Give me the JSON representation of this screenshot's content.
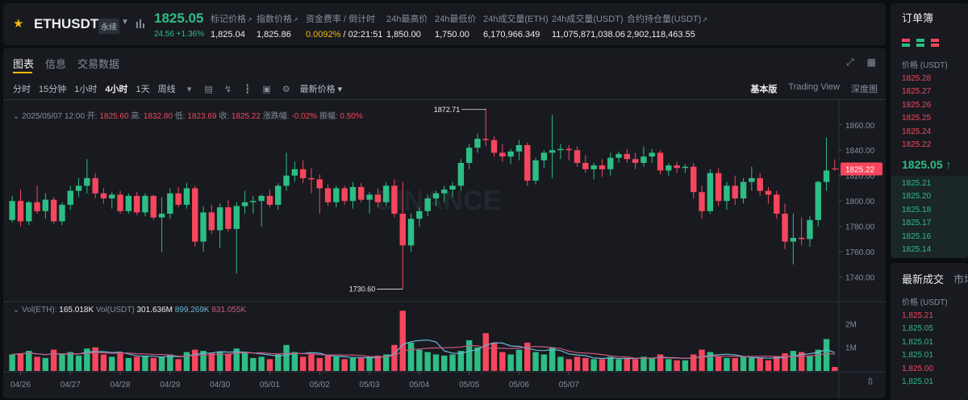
{
  "ticker": {
    "symbol": "ETHUSDT",
    "contract_tag": "永续",
    "last_price": "1825.05",
    "change": "24.56 +1.36%",
    "stats": [
      {
        "label": "标记价格",
        "value": "1,825.04",
        "ext": true
      },
      {
        "label": "指数价格",
        "value": "1,825.86",
        "ext": true
      },
      {
        "label": "资金费率 / 倒计时",
        "value": "0.0092%",
        "value2": " / 02:21:51",
        "ext": false
      },
      {
        "label": "24h最高价",
        "value": "1,850.00",
        "ext": false
      },
      {
        "label": "24h最低价",
        "value": "1,750.00",
        "ext": false
      },
      {
        "label": "24h成交量(ETH)",
        "value": "6,170,966.349",
        "ext": false
      },
      {
        "label": "24h成交量(USDT)",
        "value": "11,075,871,038.06",
        "ext": false
      },
      {
        "label": "合约持仓量(USDT)",
        "value": "2,902,118,463.55",
        "ext": true
      }
    ]
  },
  "chart_tabs": [
    "图表",
    "信息",
    "交易数据"
  ],
  "toolbar": {
    "intervals": [
      "分时",
      "15分钟",
      "1小时",
      "4小时",
      "1天",
      "周线"
    ],
    "selected_interval": "4小时",
    "price_type": "最新价格 ▾",
    "views": [
      "基本版",
      "Trading View",
      "深度图"
    ],
    "selected_view": "基本版",
    "icons": [
      "calendar-icon",
      "indicator-icon",
      "candle-type-icon",
      "layout-icon",
      "settings-icon"
    ]
  },
  "ohlc": {
    "date": "2025/05/07 12:00",
    "open_label": "开:",
    "open": "1825.60",
    "high_label": "高:",
    "high": "1832.80",
    "low_label": "低:",
    "low": "1823.69",
    "close_label": "收:",
    "close": "1825.22",
    "chg_label": "涨跌幅:",
    "chg": "-0.02%",
    "amp_label": "振幅:",
    "amp": "0.50%"
  },
  "volume_legend": {
    "vol_eth_label": "Vol(ETH):",
    "vol_eth": "165.018K",
    "vol_usdt_label": "Vol(USDT)",
    "vol_usdt": "301.636M",
    "ma1": "899.269K",
    "ma2": "831.055K"
  },
  "watermark": "BINANCE",
  "colors": {
    "up": "#2ebd85",
    "down": "#f6465d",
    "accent": "#f0b90b"
  },
  "chart_data": {
    "type": "candlestick",
    "price_axis": {
      "ticks": [
        1860,
        1840,
        1820,
        1800,
        1780,
        1760,
        1740
      ],
      "tick_labels": [
        "1860.00",
        "1840.00",
        "1820.00",
        "1800.00",
        "1780.00",
        "1760.00",
        "1740.00"
      ],
      "range": [
        1722,
        1877
      ]
    },
    "volume_axis": {
      "ticks": [
        2000000,
        1000000
      ],
      "tick_labels": [
        "2M",
        "1M"
      ],
      "range": [
        0,
        2800000
      ]
    },
    "x_labels": [
      "04/26",
      "04/27",
      "04/28",
      "04/29",
      "04/30",
      "05/01",
      "05/02",
      "05/03",
      "05/04",
      "05/05",
      "05/06",
      "05/07"
    ],
    "current_price_label": "1825.22",
    "max_marker": {
      "label": "1872.71",
      "value": 1872.71,
      "index": 57
    },
    "min_marker": {
      "label": "1730.60",
      "value": 1730.6,
      "index": 47
    },
    "candles": [
      {
        "o": 1785,
        "h": 1804,
        "l": 1783,
        "c": 1800,
        "v": 700000.0
      },
      {
        "o": 1800,
        "h": 1809,
        "l": 1780,
        "c": 1784,
        "v": 750000.0
      },
      {
        "o": 1784,
        "h": 1800,
        "l": 1781,
        "c": 1799,
        "v": 850000.0
      },
      {
        "o": 1799,
        "h": 1812,
        "l": 1790,
        "c": 1792,
        "v": 600000.0
      },
      {
        "o": 1792,
        "h": 1806,
        "l": 1786,
        "c": 1801,
        "v": 550000.0
      },
      {
        "o": 1801,
        "h": 1803,
        "l": 1782,
        "c": 1784,
        "v": 900000.0
      },
      {
        "o": 1784,
        "h": 1799,
        "l": 1781,
        "c": 1797,
        "v": 700000.0
      },
      {
        "o": 1797,
        "h": 1812,
        "l": 1793,
        "c": 1808,
        "v": 800000.0
      },
      {
        "o": 1808,
        "h": 1818,
        "l": 1803,
        "c": 1812,
        "v": 650000.0
      },
      {
        "o": 1812,
        "h": 1833,
        "l": 1806,
        "c": 1818,
        "v": 950000.0
      },
      {
        "o": 1818,
        "h": 1822,
        "l": 1802,
        "c": 1806,
        "v": 1000000.0
      },
      {
        "o": 1806,
        "h": 1810,
        "l": 1798,
        "c": 1802,
        "v": 700000.0
      },
      {
        "o": 1802,
        "h": 1807,
        "l": 1794,
        "c": 1805,
        "v": 600000.0
      },
      {
        "o": 1805,
        "h": 1808,
        "l": 1790,
        "c": 1792,
        "v": 750000.0
      },
      {
        "o": 1792,
        "h": 1806,
        "l": 1790,
        "c": 1804,
        "v": 550000.0
      },
      {
        "o": 1804,
        "h": 1807,
        "l": 1789,
        "c": 1791,
        "v": 600000.0
      },
      {
        "o": 1791,
        "h": 1806,
        "l": 1788,
        "c": 1804,
        "v": 650000.0
      },
      {
        "o": 1804,
        "h": 1805,
        "l": 1785,
        "c": 1787,
        "v": 550000.0
      },
      {
        "o": 1787,
        "h": 1803,
        "l": 1760,
        "c": 1790,
        "v": 600000.0
      },
      {
        "o": 1790,
        "h": 1810,
        "l": 1786,
        "c": 1806,
        "v": 700000.0
      },
      {
        "o": 1806,
        "h": 1811,
        "l": 1795,
        "c": 1797,
        "v": 500000.0
      },
      {
        "o": 1797,
        "h": 1814,
        "l": 1794,
        "c": 1810,
        "v": 800000.0
      },
      {
        "o": 1810,
        "h": 1812,
        "l": 1764,
        "c": 1768,
        "v": 900000.0
      },
      {
        "o": 1768,
        "h": 1796,
        "l": 1760,
        "c": 1791,
        "v": 850000.0
      },
      {
        "o": 1791,
        "h": 1797,
        "l": 1774,
        "c": 1777,
        "v": 750000.0
      },
      {
        "o": 1777,
        "h": 1798,
        "l": 1763,
        "c": 1795,
        "v": 800000.0
      },
      {
        "o": 1795,
        "h": 1801,
        "l": 1776,
        "c": 1778,
        "v": 700000.0
      },
      {
        "o": 1778,
        "h": 1799,
        "l": 1743,
        "c": 1796,
        "v": 950000.0
      },
      {
        "o": 1796,
        "h": 1808,
        "l": 1790,
        "c": 1799,
        "v": 800000.0
      },
      {
        "o": 1799,
        "h": 1804,
        "l": 1790,
        "c": 1800,
        "v": 550000.0
      },
      {
        "o": 1800,
        "h": 1805,
        "l": 1780,
        "c": 1804,
        "v": 600000.0
      },
      {
        "o": 1804,
        "h": 1809,
        "l": 1795,
        "c": 1797,
        "v": 500000.0
      },
      {
        "o": 1797,
        "h": 1814,
        "l": 1793,
        "c": 1812,
        "v": 700000.0
      },
      {
        "o": 1812,
        "h": 1838,
        "l": 1808,
        "c": 1820,
        "v": 1100000.0
      },
      {
        "o": 1820,
        "h": 1831,
        "l": 1815,
        "c": 1825,
        "v": 800000.0
      },
      {
        "o": 1825,
        "h": 1832,
        "l": 1814,
        "c": 1818,
        "v": 600000.0
      },
      {
        "o": 1818,
        "h": 1826,
        "l": 1806,
        "c": 1817,
        "v": 700000.0
      },
      {
        "o": 1817,
        "h": 1821,
        "l": 1790,
        "c": 1810,
        "v": 550000.0
      },
      {
        "o": 1810,
        "h": 1813,
        "l": 1796,
        "c": 1799,
        "v": 650000.0
      },
      {
        "o": 1799,
        "h": 1812,
        "l": 1795,
        "c": 1810,
        "v": 600000.0
      },
      {
        "o": 1810,
        "h": 1812,
        "l": 1797,
        "c": 1800,
        "v": 500000.0
      },
      {
        "o": 1800,
        "h": 1815,
        "l": 1794,
        "c": 1811,
        "v": 550000.0
      },
      {
        "o": 1811,
        "h": 1814,
        "l": 1799,
        "c": 1801,
        "v": 550000.0
      },
      {
        "o": 1801,
        "h": 1807,
        "l": 1790,
        "c": 1805,
        "v": 600000.0
      },
      {
        "o": 1805,
        "h": 1810,
        "l": 1795,
        "c": 1799,
        "v": 650000.0
      },
      {
        "o": 1799,
        "h": 1815,
        "l": 1796,
        "c": 1812,
        "v": 700000.0
      },
      {
        "o": 1812,
        "h": 1817,
        "l": 1787,
        "c": 1790,
        "v": 1100000.0
      },
      {
        "o": 1790,
        "h": 1815,
        "l": 1731,
        "c": 1765,
        "v": 2550000.0
      },
      {
        "o": 1765,
        "h": 1790,
        "l": 1760,
        "c": 1786,
        "v": 1200000.0
      },
      {
        "o": 1786,
        "h": 1795,
        "l": 1780,
        "c": 1792,
        "v": 900000.0
      },
      {
        "o": 1792,
        "h": 1805,
        "l": 1788,
        "c": 1802,
        "v": 800000.0
      },
      {
        "o": 1802,
        "h": 1808,
        "l": 1796,
        "c": 1806,
        "v": 700000.0
      },
      {
        "o": 1806,
        "h": 1812,
        "l": 1799,
        "c": 1809,
        "v": 650000.0
      },
      {
        "o": 1809,
        "h": 1815,
        "l": 1803,
        "c": 1812,
        "v": 700000.0
      },
      {
        "o": 1812,
        "h": 1833,
        "l": 1808,
        "c": 1830,
        "v": 850000.0
      },
      {
        "o": 1830,
        "h": 1845,
        "l": 1825,
        "c": 1842,
        "v": 1300000.0
      },
      {
        "o": 1842,
        "h": 1853,
        "l": 1838,
        "c": 1849,
        "v": 1000000.0
      },
      {
        "o": 1849,
        "h": 1873,
        "l": 1843,
        "c": 1848,
        "v": 1600000.0
      },
      {
        "o": 1848,
        "h": 1851,
        "l": 1835,
        "c": 1838,
        "v": 1200000.0
      },
      {
        "o": 1838,
        "h": 1845,
        "l": 1831,
        "c": 1835,
        "v": 800000.0
      },
      {
        "o": 1835,
        "h": 1841,
        "l": 1829,
        "c": 1839,
        "v": 700000.0
      },
      {
        "o": 1839,
        "h": 1848,
        "l": 1832,
        "c": 1844,
        "v": 900000.0
      },
      {
        "o": 1844,
        "h": 1846,
        "l": 1812,
        "c": 1816,
        "v": 1200000.0
      },
      {
        "o": 1816,
        "h": 1834,
        "l": 1813,
        "c": 1832,
        "v": 800000.0
      },
      {
        "o": 1832,
        "h": 1840,
        "l": 1826,
        "c": 1838,
        "v": 700000.0
      },
      {
        "o": 1838,
        "h": 1868,
        "l": 1818,
        "c": 1840,
        "v": 1000000.0
      },
      {
        "o": 1840,
        "h": 1845,
        "l": 1833,
        "c": 1841,
        "v": 600000.0
      },
      {
        "o": 1841,
        "h": 1844,
        "l": 1832,
        "c": 1840,
        "v": 500000.0
      },
      {
        "o": 1840,
        "h": 1843,
        "l": 1827,
        "c": 1830,
        "v": 600000.0
      },
      {
        "o": 1830,
        "h": 1836,
        "l": 1822,
        "c": 1825,
        "v": 550000.0
      },
      {
        "o": 1825,
        "h": 1830,
        "l": 1817,
        "c": 1828,
        "v": 500000.0
      },
      {
        "o": 1828,
        "h": 1833,
        "l": 1819,
        "c": 1825,
        "v": 500000.0
      },
      {
        "o": 1825,
        "h": 1838,
        "l": 1820,
        "c": 1834,
        "v": 600000.0
      },
      {
        "o": 1834,
        "h": 1839,
        "l": 1830,
        "c": 1837,
        "v": 500000.0
      },
      {
        "o": 1837,
        "h": 1841,
        "l": 1830,
        "c": 1833,
        "v": 550000.0
      },
      {
        "o": 1833,
        "h": 1838,
        "l": 1825,
        "c": 1830,
        "v": 500000.0
      },
      {
        "o": 1830,
        "h": 1843,
        "l": 1827,
        "c": 1835,
        "v": 600000.0
      },
      {
        "o": 1835,
        "h": 1841,
        "l": 1830,
        "c": 1838,
        "v": 550000.0
      },
      {
        "o": 1838,
        "h": 1840,
        "l": 1821,
        "c": 1824,
        "v": 700000.0
      },
      {
        "o": 1824,
        "h": 1830,
        "l": 1820,
        "c": 1828,
        "v": 500000.0
      },
      {
        "o": 1828,
        "h": 1831,
        "l": 1822,
        "c": 1826,
        "v": 450000.0
      },
      {
        "o": 1826,
        "h": 1829,
        "l": 1822,
        "c": 1827,
        "v": 450000.0
      },
      {
        "o": 1827,
        "h": 1830,
        "l": 1802,
        "c": 1807,
        "v": 700000.0
      },
      {
        "o": 1807,
        "h": 1812,
        "l": 1786,
        "c": 1792,
        "v": 900000.0
      },
      {
        "o": 1792,
        "h": 1825,
        "l": 1790,
        "c": 1822,
        "v": 800000.0
      },
      {
        "o": 1822,
        "h": 1826,
        "l": 1796,
        "c": 1800,
        "v": 600000.0
      },
      {
        "o": 1800,
        "h": 1815,
        "l": 1793,
        "c": 1812,
        "v": 550000.0
      },
      {
        "o": 1812,
        "h": 1820,
        "l": 1797,
        "c": 1802,
        "v": 550000.0
      },
      {
        "o": 1802,
        "h": 1818,
        "l": 1798,
        "c": 1815,
        "v": 600000.0
      },
      {
        "o": 1815,
        "h": 1827,
        "l": 1808,
        "c": 1818,
        "v": 550000.0
      },
      {
        "o": 1818,
        "h": 1822,
        "l": 1804,
        "c": 1808,
        "v": 550000.0
      },
      {
        "o": 1808,
        "h": 1811,
        "l": 1798,
        "c": 1805,
        "v": 450000.0
      },
      {
        "o": 1805,
        "h": 1808,
        "l": 1786,
        "c": 1790,
        "v": 600000.0
      },
      {
        "o": 1790,
        "h": 1798,
        "l": 1762,
        "c": 1768,
        "v": 750000.0
      },
      {
        "o": 1768,
        "h": 1790,
        "l": 1750,
        "c": 1771,
        "v": 850000.0
      },
      {
        "o": 1771,
        "h": 1787,
        "l": 1765,
        "c": 1770,
        "v": 800000.0
      },
      {
        "o": 1770,
        "h": 1788,
        "l": 1764,
        "c": 1785,
        "v": 650000.0
      },
      {
        "o": 1785,
        "h": 1816,
        "l": 1780,
        "c": 1815,
        "v": 900000.0
      },
      {
        "o": 1815,
        "h": 1850,
        "l": 1808,
        "c": 1824,
        "v": 1350000.0
      },
      {
        "o": 1825.6,
        "h": 1832.8,
        "l": 1823.69,
        "c": 1825.22,
        "v": 170000.0
      }
    ]
  },
  "orderbook": {
    "title": "订单簿",
    "price_label": "价格 (USDT)",
    "asks": [
      "1825.28",
      "1825.27",
      "1825.26",
      "1825.25",
      "1825.24",
      "1825.22"
    ],
    "mid": "1825.05 ↑",
    "bids": [
      "1825.21",
      "1825.20",
      "1825.18",
      "1825.17",
      "1825.16",
      "1825.14"
    ]
  },
  "trades": {
    "tabs": [
      "最新成交",
      "市场"
    ],
    "price_label": "价格 (USDT)",
    "rows": [
      {
        "price": "1,825.21",
        "side": "sell"
      },
      {
        "price": "1,825.05",
        "side": "buy"
      },
      {
        "price": "1,825.01",
        "side": "buy"
      },
      {
        "price": "1,825.01",
        "side": "buy"
      },
      {
        "price": "1,825.00",
        "side": "sell"
      },
      {
        "price": "1,825.01",
        "side": "buy"
      }
    ]
  }
}
